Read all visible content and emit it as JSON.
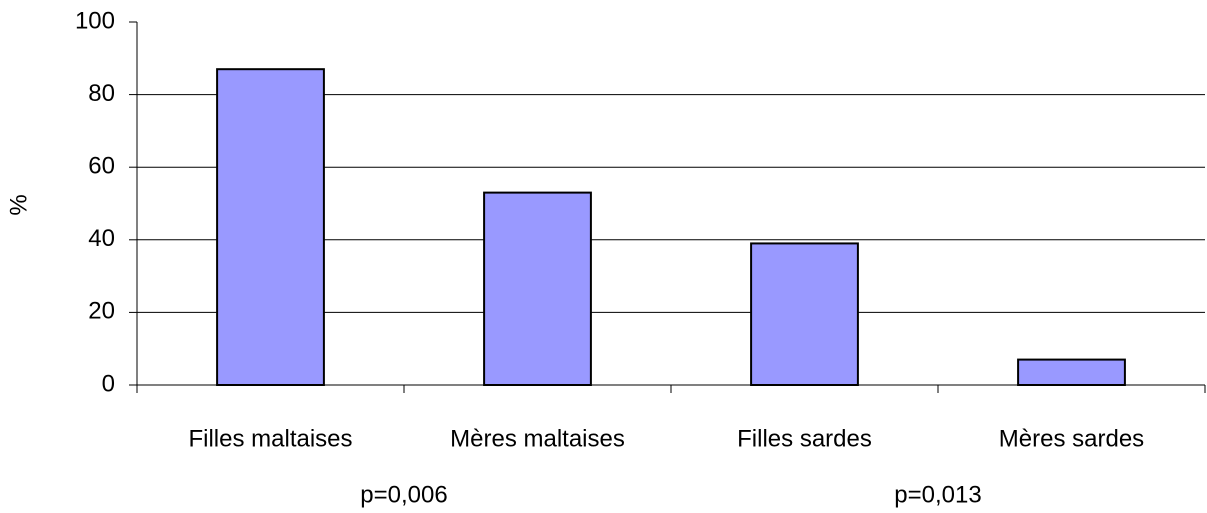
{
  "chart_data": {
    "type": "bar",
    "y_label": "%",
    "categories": [
      "Filles maltaises",
      "Mères maltaises",
      "Filles sardes",
      "Mères sardes"
    ],
    "values": [
      87,
      53,
      39,
      7
    ],
    "color": "#9999ff",
    "ylim": [
      0,
      100
    ],
    "yticks": [
      0,
      20,
      40,
      60,
      80,
      100
    ],
    "grid": true,
    "annotations": [
      "p=0,006",
      "p=0,013"
    ]
  }
}
